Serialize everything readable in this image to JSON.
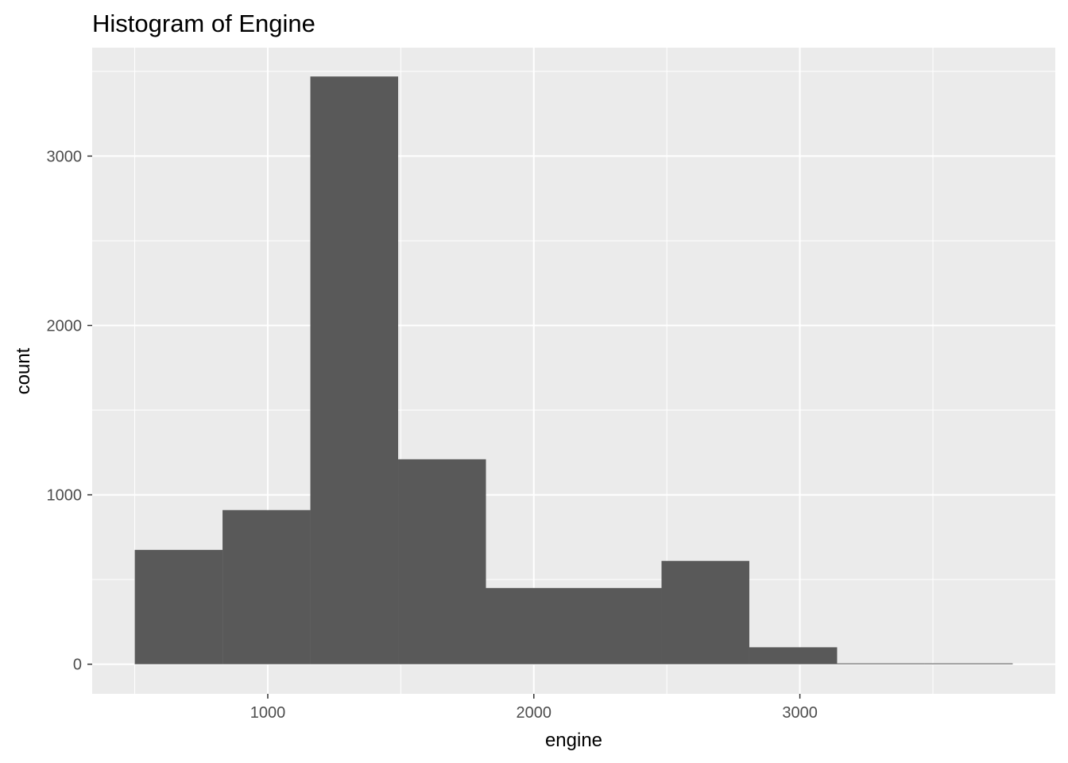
{
  "chart_data": {
    "type": "bar",
    "title": "Histogram of Engine",
    "xlabel": "engine",
    "ylabel": "count",
    "bins": [
      {
        "x0": 500,
        "x1": 830,
        "count": 675
      },
      {
        "x0": 830,
        "x1": 1160,
        "count": 910
      },
      {
        "x0": 1160,
        "x1": 1490,
        "count": 3470
      },
      {
        "x0": 1490,
        "x1": 1820,
        "count": 1210
      },
      {
        "x0": 1820,
        "x1": 2150,
        "count": 450
      },
      {
        "x0": 2150,
        "x1": 2480,
        "count": 450
      },
      {
        "x0": 2480,
        "x1": 2810,
        "count": 610
      },
      {
        "x0": 2810,
        "x1": 3140,
        "count": 100
      },
      {
        "x0": 3140,
        "x1": 3470,
        "count": 5
      },
      {
        "x0": 3470,
        "x1": 3800,
        "count": 5
      }
    ],
    "xlim": [
      340,
      3960
    ],
    "ylim": [
      -175,
      3640
    ],
    "x_ticks": [
      1000,
      2000,
      3000
    ],
    "x_tick_labels": [
      "1000",
      "2000",
      "3000"
    ],
    "x_minor": [
      500,
      1500,
      2500,
      3500
    ],
    "y_ticks": [
      0,
      1000,
      2000,
      3000
    ],
    "y_tick_labels": [
      "0",
      "1000",
      "2000",
      "3000"
    ],
    "y_minor": [
      500,
      1500,
      2500,
      3500
    ],
    "grid": true,
    "legend": "none",
    "colors": {
      "bar": "#595959",
      "panel": "#ebebeb",
      "grid": "#ffffff"
    }
  }
}
